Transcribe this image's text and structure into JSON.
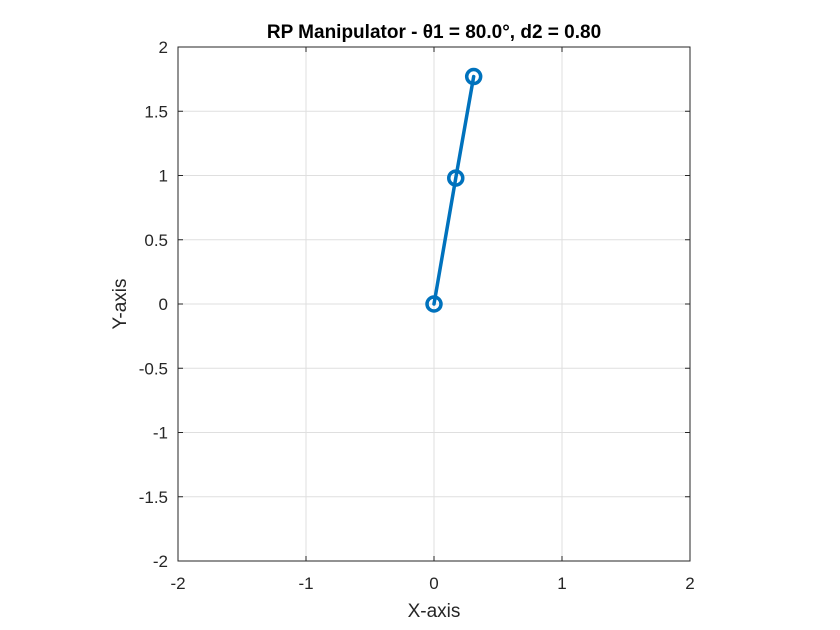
{
  "chart_data": {
    "type": "line",
    "title": "RP Manipulator - θ1 = 80.0°, d2 = 0.80",
    "xlabel": "X-axis",
    "ylabel": "Y-axis",
    "xlim": [
      -2,
      2
    ],
    "ylim": [
      -2,
      2
    ],
    "x_ticks": [
      -2,
      -1,
      0,
      1,
      2
    ],
    "x_tick_labels": [
      "-2",
      "-1",
      "0",
      "1",
      "2"
    ],
    "y_ticks": [
      -2,
      -1.5,
      -1,
      -0.5,
      0,
      0.5,
      1,
      1.5,
      2
    ],
    "y_tick_labels": [
      "-2",
      "-1.5",
      "-1",
      "-0.5",
      "0",
      "0.5",
      "1",
      "1.5",
      "2"
    ],
    "grid": true,
    "series": [
      {
        "x": [
          0,
          0.17,
          0.31
        ],
        "y": [
          0,
          0.98,
          1.77
        ],
        "marker": "circle"
      }
    ],
    "colors": {
      "series": "#0072BD",
      "grid": "#dfdfdf",
      "axes": "#262626",
      "title": "#000000"
    }
  }
}
